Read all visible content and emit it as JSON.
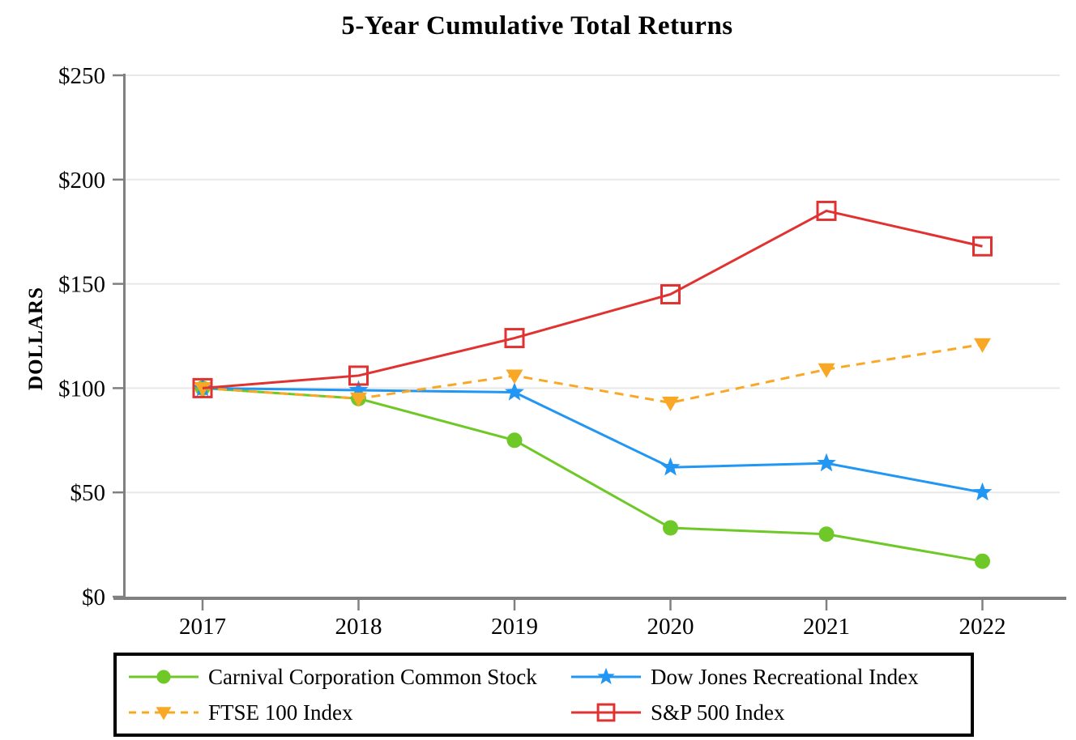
{
  "title": "5-Year Cumulative Total Returns",
  "chart_data": {
    "type": "line",
    "title": "5-Year Cumulative Total Returns",
    "xlabel": "",
    "ylabel": "DOLLARS",
    "ylim": [
      0,
      250
    ],
    "grid": "horizontal",
    "legend_position": "bottom",
    "categories": [
      "2017",
      "2018",
      "2019",
      "2020",
      "2021",
      "2022"
    ],
    "yticks": [
      {
        "value": 0,
        "label": "$0"
      },
      {
        "value": 50,
        "label": "$50"
      },
      {
        "value": 100,
        "label": "$100"
      },
      {
        "value": 150,
        "label": "$150"
      },
      {
        "value": 200,
        "label": "$200"
      },
      {
        "value": 250,
        "label": "$250"
      }
    ],
    "series": [
      {
        "name": "Carnival Corporation Common Stock",
        "marker": "circle",
        "line_style": "solid",
        "color": "#6EC828",
        "values": [
          100,
          95,
          75,
          33,
          30,
          17
        ]
      },
      {
        "name": "Dow Jones Recreational Index",
        "marker": "star",
        "line_style": "solid",
        "color": "#2196F3",
        "values": [
          100,
          99,
          98,
          62,
          64,
          50
        ]
      },
      {
        "name": "FTSE 100 Index",
        "marker": "triangle-down",
        "line_style": "dashed",
        "color": "#F9A825",
        "values": [
          100,
          95,
          106,
          93,
          109,
          121
        ]
      },
      {
        "name": "S&P 500 Index",
        "marker": "square-open",
        "line_style": "solid",
        "color": "#E13232",
        "values": [
          100,
          106,
          124,
          145,
          185,
          168
        ]
      }
    ],
    "colors": {
      "grid": "#E8E8E8",
      "axis": "#808080",
      "text": "#000000",
      "legend_border": "#000000"
    }
  }
}
